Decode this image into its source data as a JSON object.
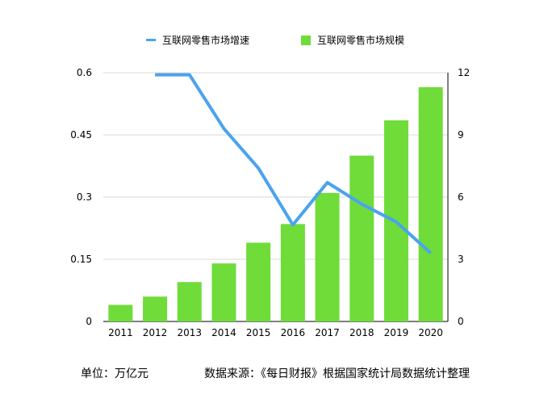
{
  "chart_data": {
    "type": "bar",
    "categories": [
      "2011",
      "2012",
      "2013",
      "2014",
      "2015",
      "2016",
      "2017",
      "2018",
      "2019",
      "2020"
    ],
    "series": [
      {
        "name": "互联网零售市场规模",
        "type": "bar",
        "axis": "right",
        "values": [
          0.8,
          1.2,
          1.9,
          2.8,
          3.8,
          4.7,
          6.2,
          8.0,
          9.7,
          11.3
        ],
        "color": "#6fdc3a"
      },
      {
        "name": "互联网零售市场增速",
        "type": "line",
        "axis": "left",
        "values": [
          null,
          0.595,
          0.595,
          0.465,
          0.37,
          0.233,
          0.335,
          0.283,
          0.24,
          0.165
        ],
        "color": "#4aa3ef"
      }
    ],
    "yleft": {
      "ticks": [
        "0",
        "0.15",
        "0.3",
        "0.45",
        "0.6"
      ],
      "lim": [
        0,
        0.6
      ]
    },
    "yright": {
      "ticks": [
        "0",
        "3",
        "6",
        "9",
        "12"
      ],
      "lim": [
        0,
        12
      ]
    },
    "grid": "horizontal",
    "legend": "top"
  },
  "legend": {
    "line_label": "互联网零售市场增速",
    "bar_label": "互联网零售市场规模"
  },
  "footer": {
    "unit": "单位：万亿元",
    "source": "数据来源：《每日财报》根据国家统计局数据统计整理"
  }
}
